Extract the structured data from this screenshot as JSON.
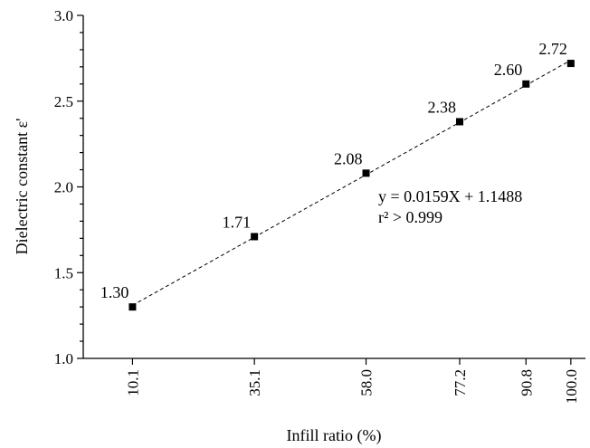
{
  "chart_data": {
    "type": "scatter",
    "x": [
      10.1,
      35.1,
      58.0,
      77.2,
      90.8,
      100.0
    ],
    "y": [
      1.3,
      1.71,
      2.08,
      2.38,
      2.6,
      2.72
    ],
    "point_labels": [
      "1.30",
      "1.71",
      "2.08",
      "2.38",
      "2.60",
      "2.72"
    ],
    "x_tick_labels": [
      "10.1",
      "35.1",
      "58.0",
      "77.2",
      "90.8",
      "100.0"
    ],
    "y_ticks": [
      1.0,
      1.5,
      2.0,
      2.5,
      3.0
    ],
    "y_tick_labels": [
      "1.0",
      "1.5",
      "2.0",
      "2.5",
      "3.0"
    ],
    "xlim": [
      0,
      103
    ],
    "ylim": [
      1.0,
      3.0
    ],
    "xlabel": "Infill ratio (%)",
    "ylabel": "Dielectric constant ε'",
    "fit": {
      "slope": 0.0159,
      "intercept": 1.1488,
      "equation": "y = 0.0159X + 1.1488",
      "r_squared": "r² > 0.999"
    },
    "marker_color": "#000000",
    "fit_line_style": "dashed",
    "grid": false
  }
}
